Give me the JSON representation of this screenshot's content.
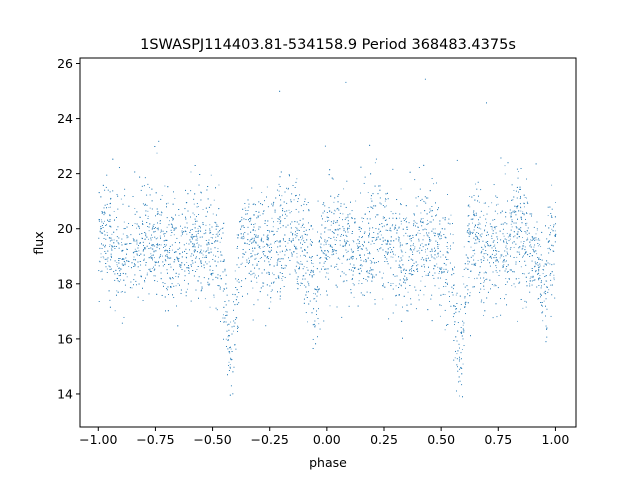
{
  "chart_data": {
    "type": "scatter",
    "title": "1SWASPJ114403.81-534158.9 Period 368483.4375s",
    "xlabel": "phase",
    "ylabel": "flux",
    "xlim": [
      -1.08,
      1.09
    ],
    "ylim": [
      12.8,
      26.2
    ],
    "x_ticks": [
      -1.0,
      -0.75,
      -0.5,
      -0.25,
      0.0,
      0.25,
      0.5,
      0.75,
      1.0
    ],
    "x_tick_labels": [
      "−1.00",
      "−0.75",
      "−0.50",
      "−0.25",
      "0.00",
      "0.25",
      "0.50",
      "0.75",
      "1.00"
    ],
    "y_ticks": [
      14,
      16,
      18,
      20,
      22,
      24,
      26
    ],
    "y_tick_labels": [
      "14",
      "16",
      "18",
      "20",
      "22",
      "24",
      "26"
    ],
    "grid": false,
    "legend": "none",
    "series_color": "#1f77b4",
    "phase_range": [
      -1.0,
      1.0
    ],
    "baseline_flux": 19.4,
    "baseline_scatter": 1.0,
    "primary_eclipses": [
      {
        "phase": -0.42,
        "depth_flux": 15.0
      },
      {
        "phase": 0.58,
        "depth_flux": 15.0
      }
    ],
    "secondary_dips": [
      {
        "phase": -0.05,
        "depth_flux": 17.5
      },
      {
        "phase": 0.95,
        "depth_flux": 17.5
      }
    ],
    "flux_spread": [
      13.9,
      25.5
    ]
  }
}
